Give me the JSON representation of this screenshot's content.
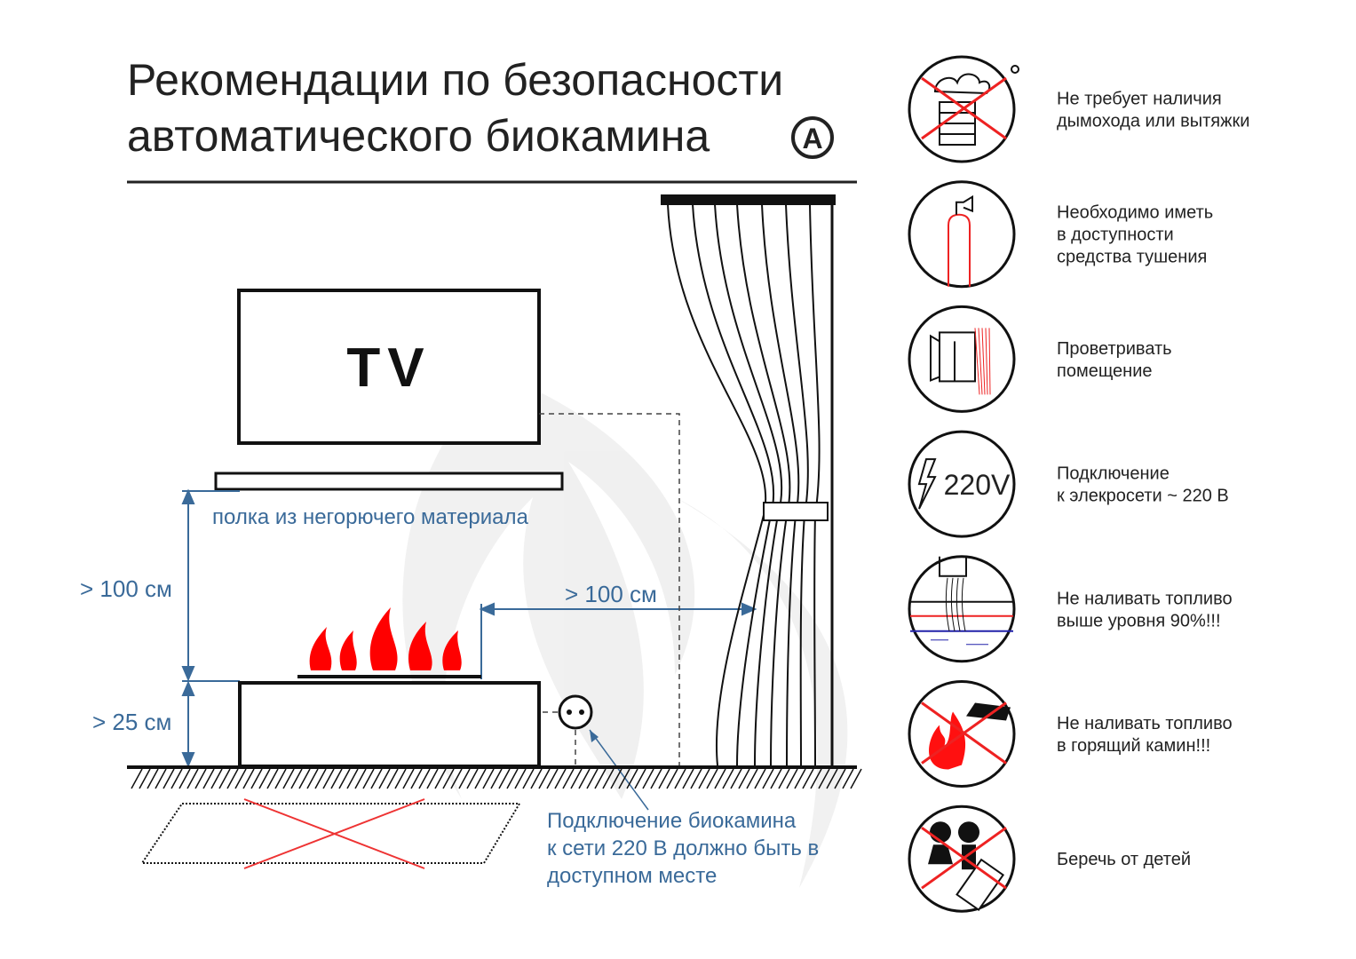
{
  "title": {
    "line1": "Рекомендации по безопасности",
    "line2": "автоматического биокамина",
    "badge": "A"
  },
  "diagram": {
    "tv_label": "TV",
    "shelf_label": "полка из негорючего материала",
    "height_above_label": "> 100 см",
    "height_base_label": "> 25 см",
    "distance_curtain_label": "> 100 см",
    "socket_note": [
      "Подключение биокамина",
      "к сети 220 В должно быть в",
      "доступном месте"
    ]
  },
  "colors": {
    "accent_blue": "#3a6a99",
    "flame_red": "#ff0000",
    "line": "#222222"
  },
  "recommendations": [
    {
      "icon": "no-chimney-icon",
      "lines": [
        "Не требует наличия",
        "дымохода или вытяжки"
      ]
    },
    {
      "icon": "fire-extinguisher-icon",
      "lines": [
        "Необходимо иметь",
        "в доступности",
        "средства тушения"
      ]
    },
    {
      "icon": "ventilate-window-icon",
      "lines": [
        "Проветривать",
        "помещение"
      ]
    },
    {
      "icon": "electric-220v-icon",
      "badge_text": "220V",
      "lines": [
        "Подключение",
        "к элекросети ~ 220 В"
      ]
    },
    {
      "icon": "fuel-level-icon",
      "lines": [
        "Не наливать топливо",
        "выше уровня 90%!!!"
      ]
    },
    {
      "icon": "no-fuel-burning-icon",
      "lines": [
        "Не наливать топливо",
        "в горящий камин!!!"
      ]
    },
    {
      "icon": "keep-from-children-icon",
      "lines": [
        "Беречь от детей"
      ]
    }
  ]
}
